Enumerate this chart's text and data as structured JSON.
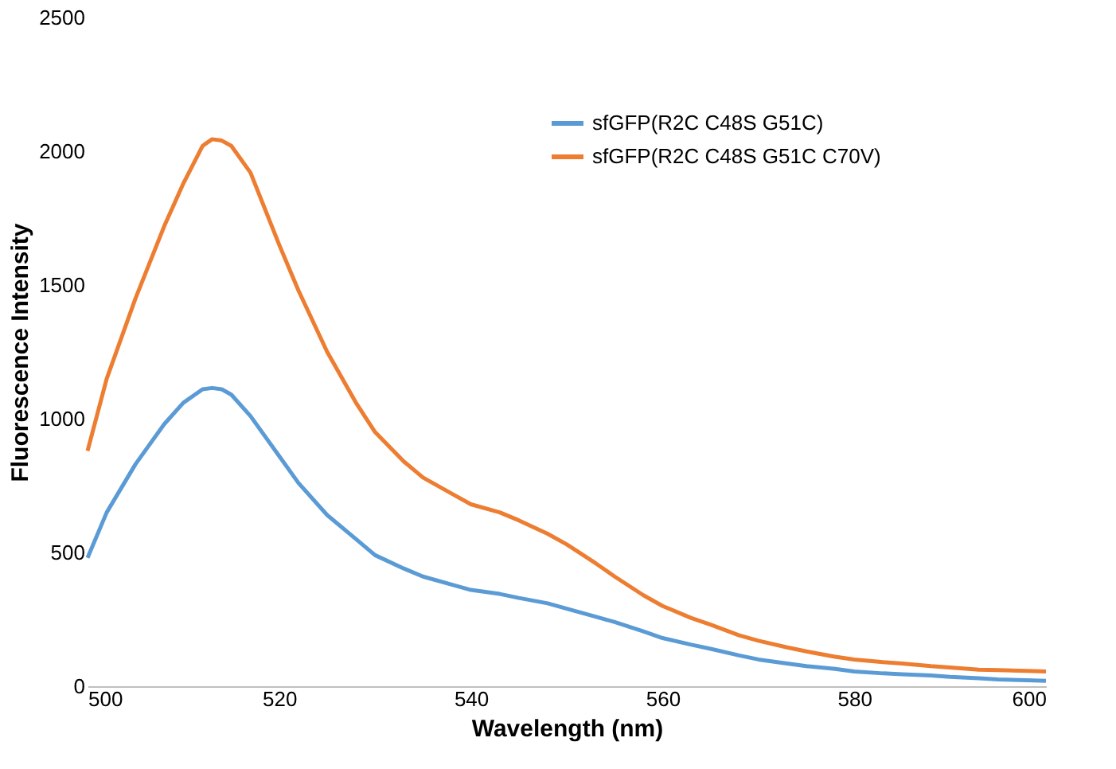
{
  "chart_data": {
    "type": "line",
    "xlabel": "Wavelength (nm)",
    "ylabel": "Fluorescence Intensity",
    "xlim": [
      500,
      600
    ],
    "xticks": [
      500,
      520,
      540,
      560,
      580,
      600
    ],
    "ylim": [
      0,
      2500
    ],
    "yticks": [
      0,
      500,
      1000,
      1500,
      2000,
      2500
    ],
    "grid": false,
    "legend": "top right",
    "marker": "none",
    "line_style": "solid",
    "x": [
      500,
      502,
      505,
      508,
      510,
      512,
      513,
      514,
      515,
      517,
      520,
      522,
      525,
      528,
      530,
      533,
      535,
      538,
      540,
      543,
      545,
      548,
      550,
      553,
      555,
      558,
      560,
      563,
      565,
      568,
      570,
      573,
      575,
      578,
      580,
      583,
      585,
      588,
      590,
      593,
      595,
      598,
      600
    ],
    "series": [
      {
        "name": "sfGFP(R2C C48S G51C)",
        "color": "#5b9bd5",
        "values": [
          480,
          650,
          830,
          980,
          1060,
          1110,
          1115,
          1110,
          1090,
          1010,
          860,
          760,
          640,
          550,
          490,
          440,
          410,
          380,
          360,
          345,
          330,
          310,
          290,
          260,
          240,
          205,
          180,
          155,
          140,
          115,
          100,
          85,
          75,
          65,
          55,
          48,
          45,
          40,
          35,
          30,
          25,
          22,
          20
        ]
      },
      {
        "name": "sfGFP(R2C C48S G51C C70V)",
        "color": "#ed7d31",
        "values": [
          880,
          1150,
          1450,
          1720,
          1880,
          2020,
          2045,
          2040,
          2020,
          1920,
          1650,
          1480,
          1250,
          1060,
          950,
          840,
          780,
          720,
          680,
          650,
          620,
          570,
          530,
          460,
          410,
          340,
          300,
          255,
          230,
          190,
          170,
          145,
          130,
          110,
          100,
          90,
          85,
          75,
          70,
          62,
          60,
          57,
          55
        ]
      }
    ]
  }
}
